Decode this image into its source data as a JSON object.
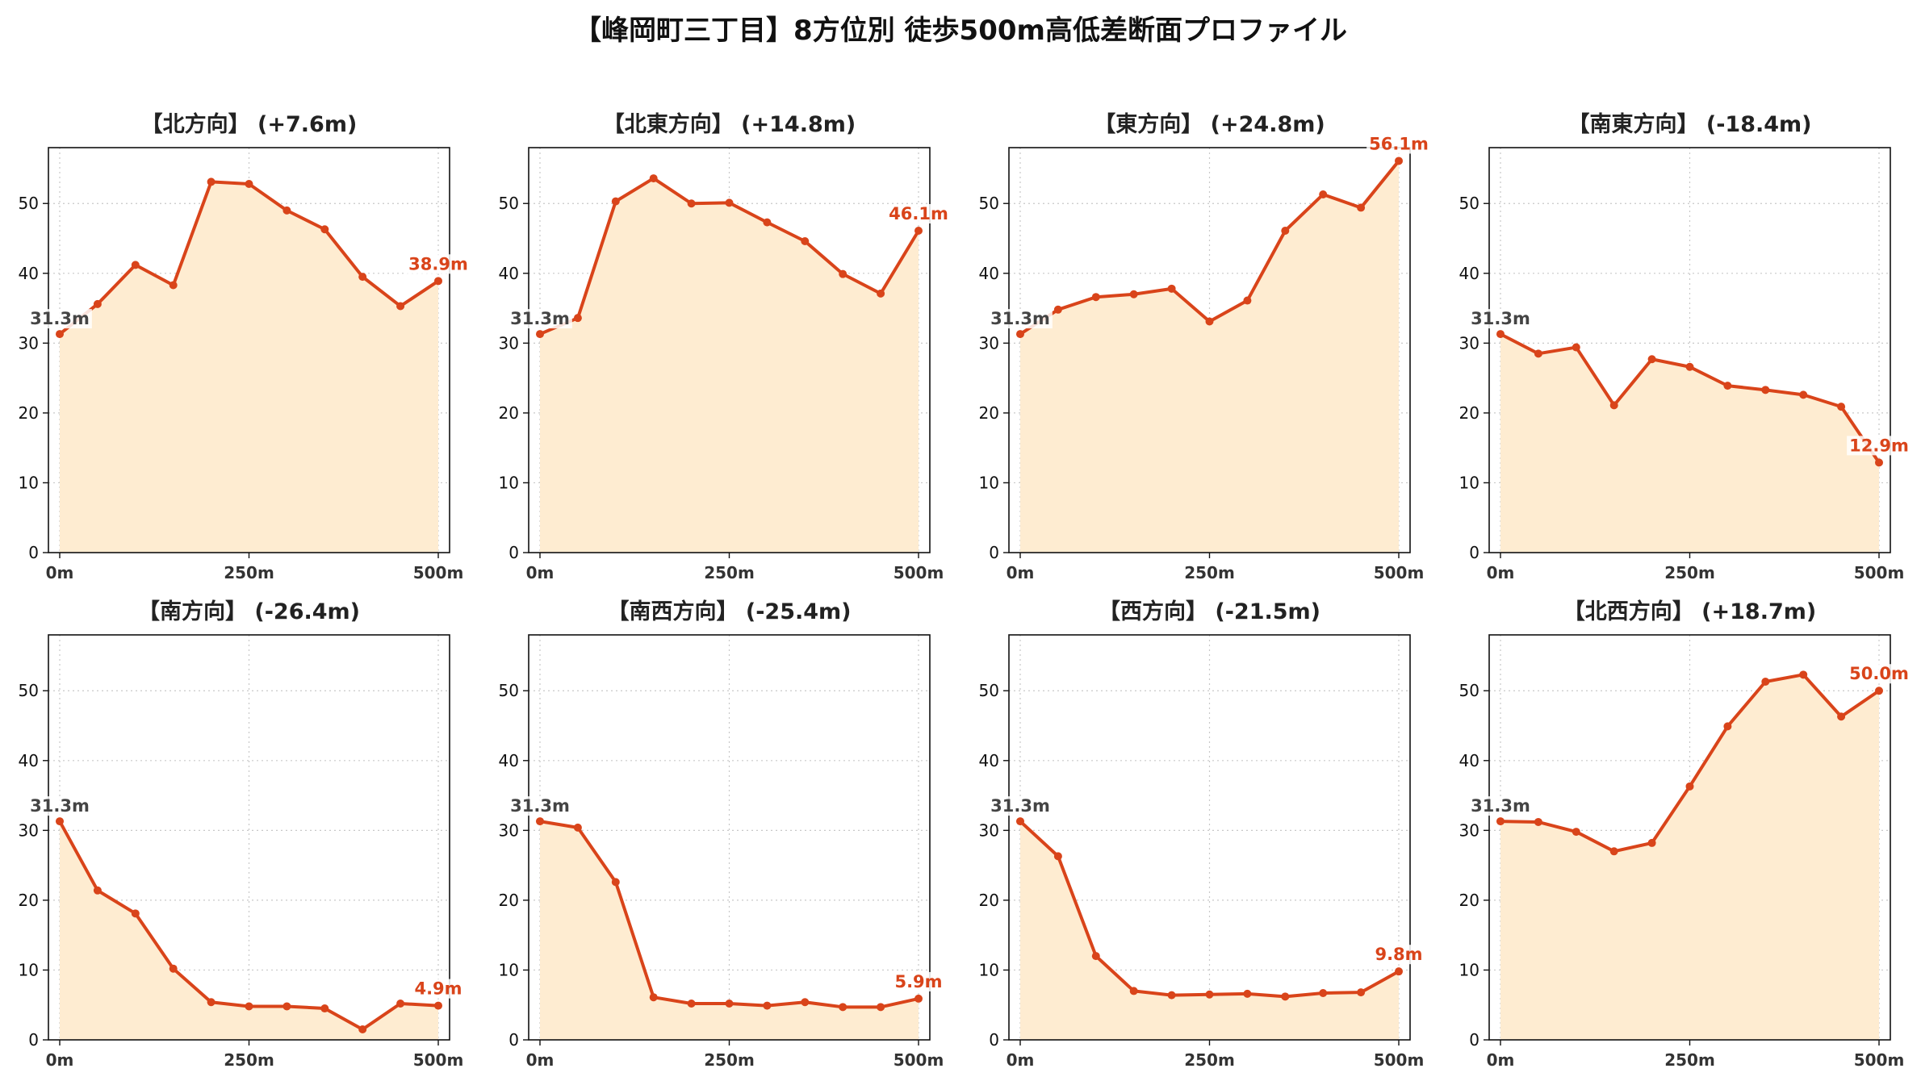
{
  "title": "【峰岡町三丁目】8方位別 徒歩500m高低差断面プロファイル",
  "colors": {
    "line": "#d9441a",
    "fill": "#feecd1",
    "grid": "#c8c8c8",
    "start_label": "#444444",
    "end_label": "#d9441a"
  },
  "chart_data": [
    {
      "type": "area",
      "title": "【北方向】 (+7.6m)",
      "x": [
        0,
        50,
        100,
        150,
        200,
        250,
        300,
        350,
        400,
        450,
        500
      ],
      "y": [
        31.3,
        35.6,
        41.2,
        38.3,
        53.1,
        52.8,
        49.0,
        46.3,
        39.5,
        35.3,
        38.9
      ],
      "start_label": "31.3m",
      "end_label": "38.9m",
      "xticks": [
        "0m",
        "250m",
        "500m"
      ],
      "yticks": [
        0,
        10,
        20,
        30,
        40,
        50
      ],
      "ylim": [
        0,
        58
      ],
      "grid": true
    },
    {
      "type": "area",
      "title": "【北東方向】 (+14.8m)",
      "x": [
        0,
        50,
        100,
        150,
        200,
        250,
        300,
        350,
        400,
        450,
        500
      ],
      "y": [
        31.3,
        33.6,
        50.3,
        53.6,
        50.0,
        50.1,
        47.3,
        44.6,
        39.9,
        37.1,
        46.1
      ],
      "start_label": "31.3m",
      "end_label": "46.1m",
      "xticks": [
        "0m",
        "250m",
        "500m"
      ],
      "yticks": [
        0,
        10,
        20,
        30,
        40,
        50
      ],
      "ylim": [
        0,
        58
      ],
      "grid": true
    },
    {
      "type": "area",
      "title": "【東方向】 (+24.8m)",
      "x": [
        0,
        50,
        100,
        150,
        200,
        250,
        300,
        350,
        400,
        450,
        500
      ],
      "y": [
        31.3,
        34.8,
        36.6,
        37.0,
        37.8,
        33.1,
        36.1,
        46.1,
        51.3,
        49.4,
        56.1
      ],
      "start_label": "31.3m",
      "end_label": "56.1m",
      "xticks": [
        "0m",
        "250m",
        "500m"
      ],
      "yticks": [
        0,
        10,
        20,
        30,
        40,
        50
      ],
      "ylim": [
        0,
        58
      ],
      "grid": true
    },
    {
      "type": "area",
      "title": "【南東方向】 (-18.4m)",
      "x": [
        0,
        50,
        100,
        150,
        200,
        250,
        300,
        350,
        400,
        450,
        500
      ],
      "y": [
        31.3,
        28.5,
        29.4,
        21.1,
        27.7,
        26.6,
        23.9,
        23.3,
        22.6,
        20.9,
        12.9
      ],
      "start_label": "31.3m",
      "end_label": "12.9m",
      "xticks": [
        "0m",
        "250m",
        "500m"
      ],
      "yticks": [
        0,
        10,
        20,
        30,
        40,
        50
      ],
      "ylim": [
        0,
        58
      ],
      "grid": true
    },
    {
      "type": "area",
      "title": "【南方向】 (-26.4m)",
      "x": [
        0,
        50,
        100,
        150,
        200,
        250,
        300,
        350,
        400,
        450,
        500
      ],
      "y": [
        31.3,
        21.4,
        18.1,
        10.2,
        5.4,
        4.8,
        4.8,
        4.5,
        1.5,
        5.2,
        4.9
      ],
      "start_label": "31.3m",
      "end_label": "4.9m",
      "xticks": [
        "0m",
        "250m",
        "500m"
      ],
      "yticks": [
        0,
        10,
        20,
        30,
        40,
        50
      ],
      "ylim": [
        0,
        58
      ],
      "grid": true
    },
    {
      "type": "area",
      "title": "【南西方向】 (-25.4m)",
      "x": [
        0,
        50,
        100,
        150,
        200,
        250,
        300,
        350,
        400,
        450,
        500
      ],
      "y": [
        31.3,
        30.4,
        22.6,
        6.1,
        5.2,
        5.2,
        4.9,
        5.4,
        4.7,
        4.7,
        5.9
      ],
      "start_label": "31.3m",
      "end_label": "5.9m",
      "xticks": [
        "0m",
        "250m",
        "500m"
      ],
      "yticks": [
        0,
        10,
        20,
        30,
        40,
        50
      ],
      "ylim": [
        0,
        58
      ],
      "grid": true
    },
    {
      "type": "area",
      "title": "【西方向】 (-21.5m)",
      "x": [
        0,
        50,
        100,
        150,
        200,
        250,
        300,
        350,
        400,
        450,
        500
      ],
      "y": [
        31.3,
        26.3,
        12.0,
        7.0,
        6.4,
        6.5,
        6.6,
        6.2,
        6.7,
        6.8,
        9.8
      ],
      "start_label": "31.3m",
      "end_label": "9.8m",
      "xticks": [
        "0m",
        "250m",
        "500m"
      ],
      "yticks": [
        0,
        10,
        20,
        30,
        40,
        50
      ],
      "ylim": [
        0,
        58
      ],
      "grid": true
    },
    {
      "type": "area",
      "title": "【北西方向】 (+18.7m)",
      "x": [
        0,
        50,
        100,
        150,
        200,
        250,
        300,
        350,
        400,
        450,
        500
      ],
      "y": [
        31.3,
        31.2,
        29.8,
        27.0,
        28.2,
        36.3,
        44.9,
        51.3,
        52.3,
        46.3,
        50.0
      ],
      "start_label": "31.3m",
      "end_label": "50.0m",
      "xticks": [
        "0m",
        "250m",
        "500m"
      ],
      "yticks": [
        0,
        10,
        20,
        30,
        40,
        50
      ],
      "ylim": [
        0,
        58
      ],
      "grid": true
    }
  ]
}
